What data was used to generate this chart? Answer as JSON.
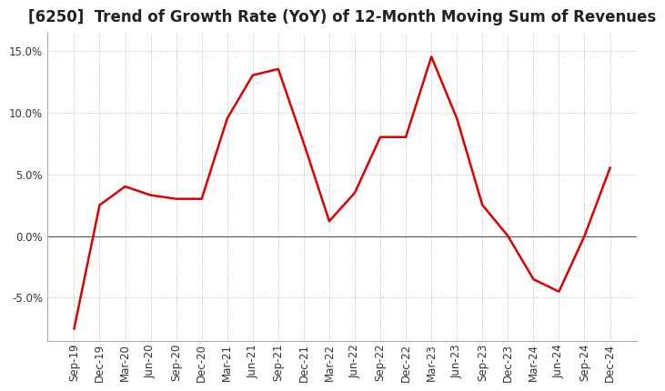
{
  "title": "[6250]  Trend of Growth Rate (YoY) of 12-Month Moving Sum of Revenues",
  "x_labels": [
    "Sep-19",
    "Dec-19",
    "Mar-20",
    "Jun-20",
    "Sep-20",
    "Dec-20",
    "Mar-21",
    "Jun-21",
    "Sep-21",
    "Dec-21",
    "Mar-22",
    "Jun-22",
    "Sep-22",
    "Dec-22",
    "Mar-23",
    "Jun-23",
    "Sep-23",
    "Dec-23",
    "Mar-24",
    "Jun-24",
    "Sep-24",
    "Dec-24"
  ],
  "y_values": [
    -7.5,
    2.5,
    4.0,
    3.3,
    3.0,
    3.0,
    9.5,
    13.0,
    13.5,
    7.5,
    1.2,
    3.5,
    8.0,
    8.0,
    14.5,
    9.5,
    2.5,
    0.0,
    -3.5,
    -4.5,
    0.0,
    5.5
  ],
  "line_color": "#dd0000",
  "ylim": [
    -8.5,
    16.5
  ],
  "yticks": [
    -5.0,
    0.0,
    5.0,
    10.0,
    15.0
  ],
  "background_color": "#ffffff",
  "grid_color": "#aaaaaa",
  "title_fontsize": 12,
  "tick_fontsize": 8.5
}
